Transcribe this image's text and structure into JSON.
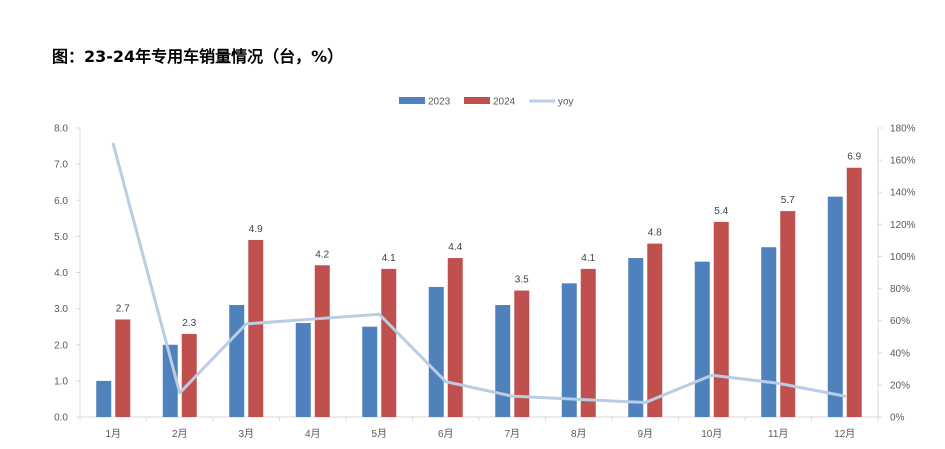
{
  "title": "图：23-24年专用车销量情况（台，%）",
  "chart_data": {
    "type": "bar",
    "categories": [
      "1月",
      "2月",
      "3月",
      "4月",
      "5月",
      "6月",
      "7月",
      "8月",
      "9月",
      "10月",
      "11月",
      "12月"
    ],
    "series": [
      {
        "name": "2023",
        "type": "bar",
        "axis": "left",
        "color": "#4F81BD",
        "values": [
          1.0,
          2.0,
          3.1,
          2.6,
          2.5,
          3.6,
          3.1,
          3.7,
          4.4,
          4.3,
          4.7,
          6.1
        ]
      },
      {
        "name": "2024",
        "type": "bar",
        "axis": "left",
        "color": "#C0504D",
        "values": [
          2.7,
          2.3,
          4.9,
          4.2,
          4.1,
          4.4,
          3.5,
          4.1,
          4.8,
          5.4,
          5.7,
          6.9
        ],
        "data_labels": [
          "2.7",
          "2.3",
          "4.9",
          "4.2",
          "4.1",
          "4.4",
          "3.5",
          "4.1",
          "4.8",
          "5.4",
          "5.7",
          "6.9"
        ]
      },
      {
        "name": "yoy",
        "type": "line",
        "axis": "right",
        "color": "#B9CDE5",
        "values": [
          170,
          15,
          58,
          61,
          64,
          22,
          13,
          11,
          9,
          26,
          21,
          13
        ]
      }
    ],
    "y_left": {
      "min": 0,
      "max": 8,
      "ticks": [
        "0.0",
        "1.0",
        "2.0",
        "3.0",
        "4.0",
        "5.0",
        "6.0",
        "7.0",
        "8.0"
      ]
    },
    "y_right": {
      "min": 0,
      "max": 180,
      "ticks": [
        "0%",
        "20%",
        "40%",
        "60%",
        "80%",
        "100%",
        "120%",
        "140%",
        "160%",
        "180%"
      ]
    },
    "legend": {
      "position": "top",
      "items": [
        "2023",
        "2024",
        "yoy"
      ]
    },
    "grid": false
  }
}
